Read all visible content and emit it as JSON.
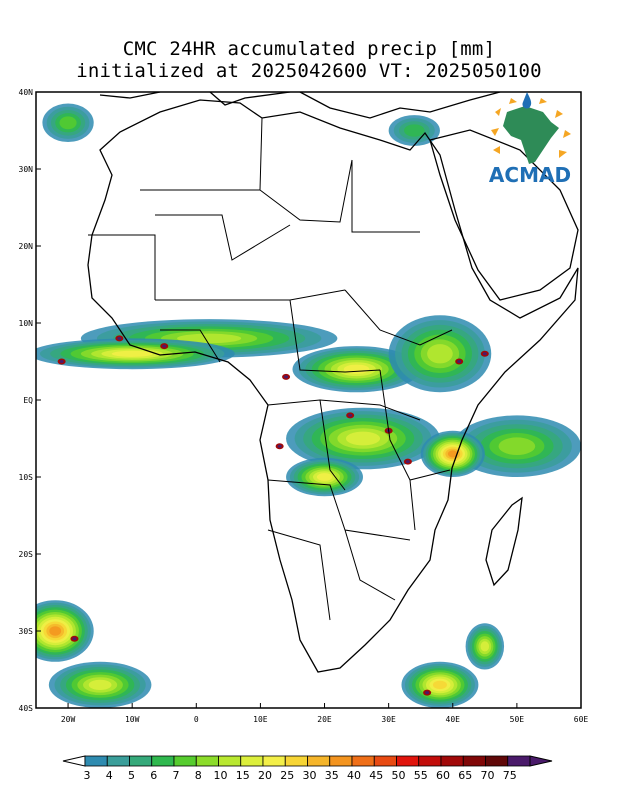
{
  "title": {
    "line1": "CMC 24HR accumulated precip [mm]",
    "line2": "initialized at 2025042600 VT: 2025050100"
  },
  "logo": {
    "text": "ACMAD",
    "colors": {
      "continent": "#2e8b57",
      "text": "#1f6fb5",
      "rays": "#f5a623"
    }
  },
  "map": {
    "lon_range": [
      -25,
      60
    ],
    "lat_range": [
      -40,
      40
    ],
    "lat_ticks": [
      {
        "value": 40,
        "label": "40N"
      },
      {
        "value": 30,
        "label": "30N"
      },
      {
        "value": 20,
        "label": "20N"
      },
      {
        "value": 10,
        "label": "10N"
      },
      {
        "value": 0,
        "label": "EQ"
      },
      {
        "value": -10,
        "label": "10S"
      },
      {
        "value": -20,
        "label": "20S"
      },
      {
        "value": -30,
        "label": "30S"
      },
      {
        "value": -40,
        "label": "40S"
      }
    ],
    "lon_ticks": [
      {
        "value": -20,
        "label": "20W"
      },
      {
        "value": -10,
        "label": "10W"
      },
      {
        "value": 0,
        "label": "0"
      },
      {
        "value": 10,
        "label": "10E"
      },
      {
        "value": 20,
        "label": "20E"
      },
      {
        "value": 30,
        "label": "30E"
      },
      {
        "value": 40,
        "label": "40E"
      },
      {
        "value": 50,
        "label": "50E"
      },
      {
        "value": 60,
        "label": "60E"
      }
    ]
  },
  "colorbar": {
    "labels": [
      "3",
      "4",
      "5",
      "6",
      "7",
      "8",
      "10",
      "15",
      "20",
      "25",
      "30",
      "35",
      "40",
      "45",
      "50",
      "55",
      "60",
      "65",
      "70",
      "75"
    ],
    "colors": [
      "#2e8bb0",
      "#3a9e9a",
      "#35a97a",
      "#2fb84e",
      "#56cc2e",
      "#8cdc2a",
      "#b9e830",
      "#dcef3c",
      "#f3ef48",
      "#f7d535",
      "#f5b52a",
      "#f3941f",
      "#ef6f18",
      "#e84a12",
      "#e0140c",
      "#c20d0a",
      "#a10909",
      "#800707",
      "#600808",
      "#4a1a6a"
    ]
  },
  "precip_regions": [
    {
      "lon": 2,
      "lat": 8,
      "rx": 20,
      "ry": 2.5,
      "level": 7
    },
    {
      "lon": -10,
      "lat": 6,
      "rx": 16,
      "ry": 2,
      "level": 9
    },
    {
      "lon": 25,
      "lat": 4,
      "rx": 10,
      "ry": 3,
      "level": 9
    },
    {
      "lon": 26,
      "lat": -5,
      "rx": 12,
      "ry": 4,
      "level": 8
    },
    {
      "lon": 38,
      "lat": 6,
      "rx": 8,
      "ry": 5,
      "level": 7
    },
    {
      "lon": 50,
      "lat": -6,
      "rx": 10,
      "ry": 4,
      "level": 6
    },
    {
      "lon": 40,
      "lat": -7,
      "rx": 5,
      "ry": 3,
      "level": 12
    },
    {
      "lon": 20,
      "lat": -10,
      "rx": 6,
      "ry": 2.5,
      "level": 9
    },
    {
      "lon": -22,
      "lat": -30,
      "rx": 6,
      "ry": 4,
      "level": 12
    },
    {
      "lon": -15,
      "lat": -37,
      "rx": 8,
      "ry": 3,
      "level": 8
    },
    {
      "lon": 38,
      "lat": -37,
      "rx": 6,
      "ry": 3,
      "level": 10
    },
    {
      "lon": 45,
      "lat": -32,
      "rx": 3,
      "ry": 3,
      "level": 8
    },
    {
      "lon": -20,
      "lat": 36,
      "rx": 4,
      "ry": 2.5,
      "level": 5
    },
    {
      "lon": 34,
      "lat": 35,
      "rx": 4,
      "ry": 2,
      "level": 4
    }
  ],
  "hotspots": [
    {
      "lon": -12,
      "lat": 8
    },
    {
      "lon": -5,
      "lat": 7
    },
    {
      "lon": 14,
      "lat": 3
    },
    {
      "lon": 24,
      "lat": -2
    },
    {
      "lon": 30,
      "lat": -4
    },
    {
      "lon": 41,
      "lat": 5
    },
    {
      "lon": 45,
      "lat": 6
    },
    {
      "lon": 13,
      "lat": -6
    },
    {
      "lon": 33,
      "lat": -8
    },
    {
      "lon": -21,
      "lat": 5
    },
    {
      "lon": -19,
      "lat": -31
    },
    {
      "lon": 36,
      "lat": -38
    }
  ]
}
